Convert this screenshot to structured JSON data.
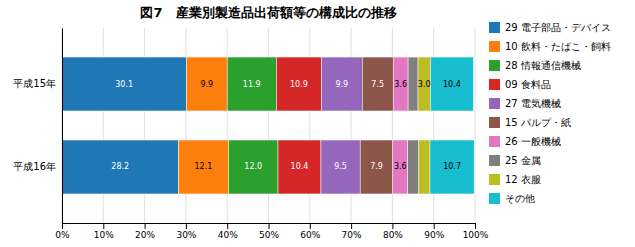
{
  "chart_data": {
    "type": "bar",
    "orientation": "horizontal",
    "stacked": true,
    "data_labels": true,
    "grid": true,
    "legend": "right",
    "title": "図7　産業別製造品出荷額等の構成比の推移",
    "categories": [
      "平成15年",
      "平成16年"
    ],
    "series": [
      {
        "name": "29 電子部品・デバイス",
        "values": [
          30.1,
          28.2
        ],
        "value_labels": [
          "30.1",
          "28.2"
        ]
      },
      {
        "name": "10 飲料・たばこ・飼料",
        "values": [
          9.9,
          12.1
        ],
        "value_labels": [
          "9.9",
          "12.1"
        ]
      },
      {
        "name": "28 情報通信機械",
        "values": [
          11.9,
          12.0
        ],
        "value_labels": [
          "11.9",
          "12.0"
        ]
      },
      {
        "name": "09 食料品",
        "values": [
          10.9,
          10.4
        ],
        "value_labels": [
          "10.9",
          "10.4"
        ]
      },
      {
        "name": "27 電気機械",
        "values": [
          9.9,
          9.5
        ],
        "value_labels": [
          "9.9",
          "9.5"
        ]
      },
      {
        "name": "15 パルプ・紙",
        "values": [
          7.5,
          7.9
        ],
        "value_labels": [
          "7.5",
          "7.9"
        ]
      },
      {
        "name": "26 一般機械",
        "values": [
          3.6,
          3.6
        ],
        "value_labels": [
          "3.6",
          "3.6"
        ]
      },
      {
        "name": "25 金属",
        "values": [
          2.4,
          2.7
        ],
        "value_labels": [
          null,
          null
        ]
      },
      {
        "name": "12 衣服",
        "values": [
          3.0,
          2.7
        ],
        "value_labels": [
          "3.0",
          null
        ]
      },
      {
        "name": "その他",
        "values": [
          10.4,
          10.7
        ],
        "value_labels": [
          "10.4",
          "10.7"
        ]
      }
    ],
    "xlim": [
      0,
      100
    ],
    "xticks": [
      {
        "value": 0,
        "label": "0%"
      },
      {
        "value": 10,
        "label": "10%"
      },
      {
        "value": 20,
        "label": "20%"
      },
      {
        "value": 30,
        "label": "30%"
      },
      {
        "value": 40,
        "label": "40%"
      },
      {
        "value": 50,
        "label": "50%"
      },
      {
        "value": 60,
        "label": "60%"
      },
      {
        "value": 70,
        "label": "70%"
      },
      {
        "value": 80,
        "label": "80%"
      },
      {
        "value": 90,
        "label": "90%"
      },
      {
        "value": 100,
        "label": "100%"
      }
    ]
  }
}
